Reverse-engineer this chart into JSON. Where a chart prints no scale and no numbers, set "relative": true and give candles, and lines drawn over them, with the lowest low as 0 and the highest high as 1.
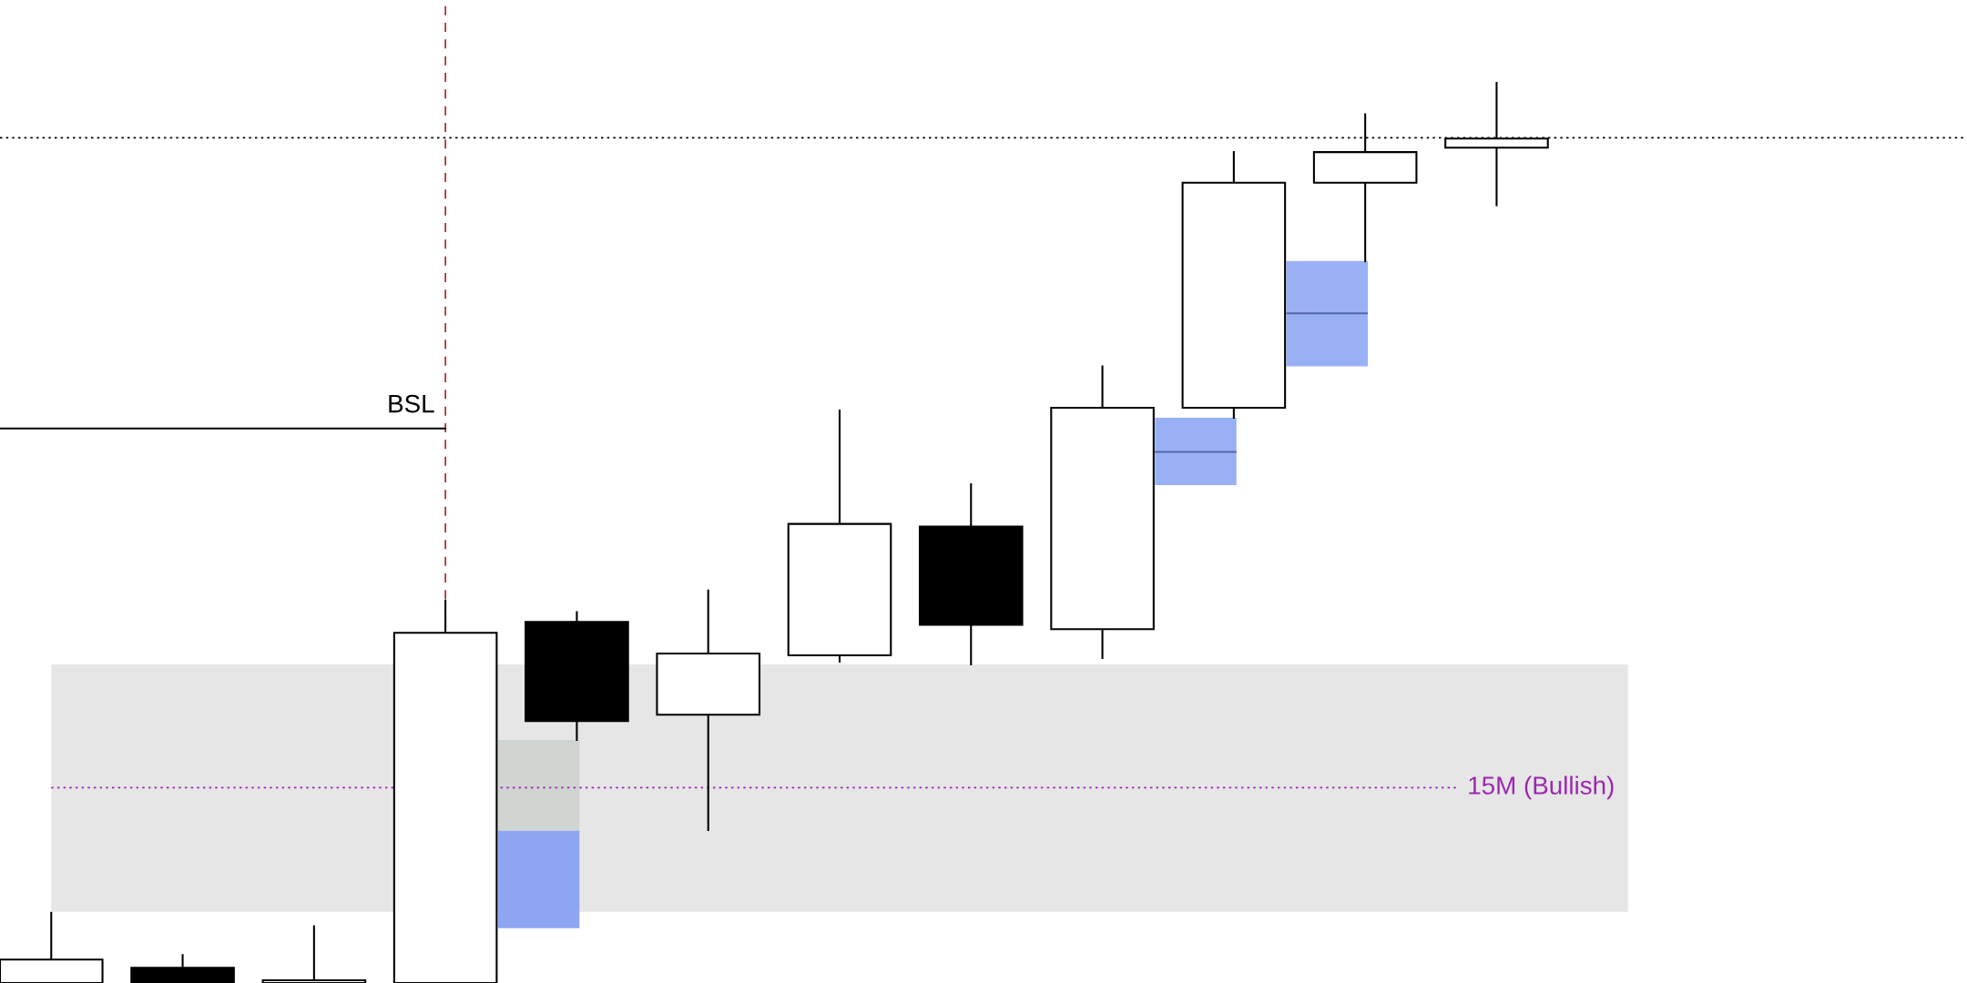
{
  "chart_data": {
    "type": "candlestick",
    "relative": true,
    "categories": [
      null,
      null,
      null,
      null,
      null,
      null,
      null,
      null,
      null,
      null,
      null,
      null,
      null,
      null,
      null
    ],
    "ohlc": [
      [
        0,
        0.078,
        0,
        0.026
      ],
      [
        0.017,
        0.031,
        0,
        0
      ],
      [
        0,
        0.063,
        0,
        0.003
      ],
      [
        0,
        0.425,
        0,
        0.389
      ],
      [
        0.401,
        0.412,
        0.27,
        0.291
      ],
      [
        0.298,
        0.436,
        0.17,
        0.366
      ],
      [
        0.364,
        0.636,
        0.357,
        0.51
      ],
      [
        0.507,
        0.554,
        0.354,
        0.398
      ],
      [
        0.393,
        0.685,
        0.361,
        0.639
      ],
      [
        0.639,
        0.923,
        0.628,
        0.889
      ],
      [
        0.889,
        0.965,
        0.802,
        0.923
      ],
      [
        0.928,
        1,
        0.864,
        0.938
      ],
      null,
      null,
      null
    ],
    "ref_lines": [
      {
        "axis": "y",
        "value": 0.939,
        "color": "#000000",
        "line_style": "dotted"
      },
      {
        "axis": "y",
        "value": 0.616,
        "label": "BSL",
        "color": "#000000",
        "line_style": "solid"
      },
      {
        "axis": "y",
        "value": 0.217,
        "label": "15M (Bullish)",
        "color": "#9c27b0",
        "line_style": "dotted"
      }
    ],
    "bands": [
      {
        "axis": "y",
        "from": 0.079,
        "to": 0.354,
        "color": "#e6e6e6"
      },
      {
        "axis": "y",
        "from": 0.169,
        "to": 0.27,
        "color": "#d0d5d2"
      },
      {
        "axis": "y",
        "from": 0.061,
        "to": 0.169,
        "color": "#8ea6f2"
      },
      {
        "axis": "y",
        "from": 0.553,
        "to": 0.628,
        "color": "#9ab0f5"
      },
      {
        "axis": "y",
        "from": 0.589,
        "to": 0.591,
        "color": "#5566aa"
      },
      {
        "axis": "y",
        "from": 0.685,
        "to": 0.802,
        "color": "#9ab0f5"
      },
      {
        "axis": "y",
        "from": 0.743,
        "to": 0.745,
        "color": "#5566aa"
      }
    ]
  }
}
